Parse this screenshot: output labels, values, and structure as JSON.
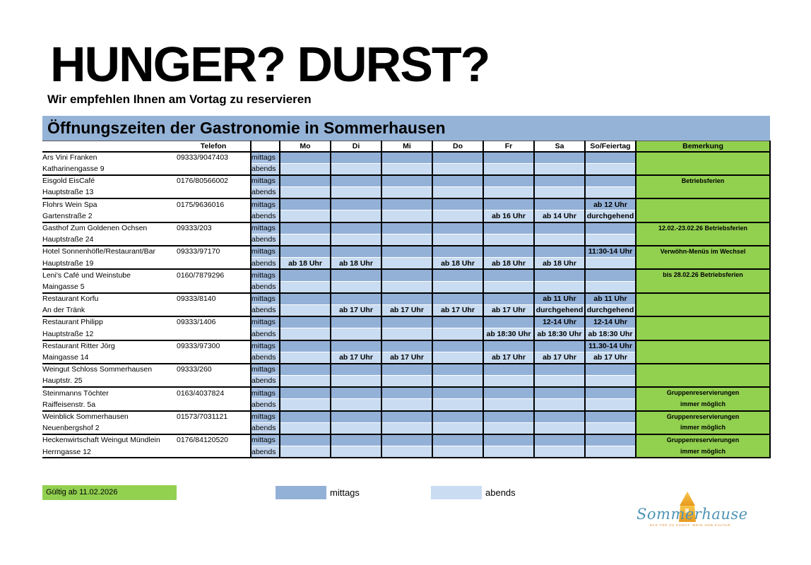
{
  "page": {
    "title": "HUNGER? DURST?",
    "subtitle": "Wir empfehlen Ihnen am Vortag zu reservieren"
  },
  "table": {
    "title": "Öffnungszeiten der Gastronomie in Sommerhausen",
    "headers": {
      "telefon": "Telefon",
      "days": [
        "Mo",
        "Di",
        "Mi",
        "Do",
        "Fr",
        "Sa",
        "So/Feiertag"
      ],
      "bemerkung": "Bemerkung"
    },
    "row_labels": [
      "mittags",
      "abends"
    ],
    "restaurants": [
      {
        "name": "Ars Vini Franken",
        "address": "Katharinengasse 9",
        "phone": "09333/9047403",
        "mittags": [
          "",
          "",
          "",
          "",
          "",
          "",
          ""
        ],
        "abends": [
          "",
          "",
          "",
          "",
          "",
          "",
          ""
        ],
        "bemerkung": [
          "",
          ""
        ]
      },
      {
        "name": "Eisgold EisCafé",
        "address": "Hauptstraße 13",
        "phone": "0176/80566002",
        "mittags": [
          "",
          "",
          "",
          "",
          "",
          "",
          ""
        ],
        "abends": [
          "",
          "",
          "",
          "",
          "",
          "",
          ""
        ],
        "bemerkung": [
          "Betriebsferien",
          ""
        ]
      },
      {
        "name": "Flohrs Wein Spa",
        "address": "Gartenstraße 2",
        "phone": "0175/9636016",
        "mittags": [
          "",
          "",
          "",
          "",
          "",
          "",
          "ab 12 Uhr"
        ],
        "abends": [
          "",
          "",
          "",
          "",
          "ab 16 Uhr",
          "ab 14 Uhr",
          "durchgehend"
        ],
        "bemerkung": [
          "",
          ""
        ]
      },
      {
        "name": "Gasthof Zum Goldenen Ochsen",
        "address": "Hauptstraße 24",
        "phone": "09333/203",
        "mittags": [
          "",
          "",
          "",
          "",
          "",
          "",
          ""
        ],
        "abends": [
          "",
          "",
          "",
          "",
          "",
          "",
          ""
        ],
        "bemerkung": [
          "12.02.-23.02.26 Betriebsferien",
          ""
        ]
      },
      {
        "name": "Hotel Sonnenhöfle/Restaurant/Bar",
        "address": "Hauptstraße 19",
        "phone": "09333/97170",
        "mittags": [
          "",
          "",
          "",
          "",
          "",
          "",
          "11:30-14 Uhr"
        ],
        "abends": [
          "ab 18 Uhr",
          "ab 18 Uhr",
          "",
          "ab 18 Uhr",
          "ab 18 Uhr",
          "ab 18 Uhr",
          ""
        ],
        "bemerkung": [
          "Verwöhn-Menüs im Wechsel",
          ""
        ]
      },
      {
        "name": "Leni's Café und Weinstube",
        "address": "Maingasse 5",
        "phone": "0160/7879296",
        "mittags": [
          "",
          "",
          "",
          "",
          "",
          "",
          ""
        ],
        "abends": [
          "",
          "",
          "",
          "",
          "",
          "",
          ""
        ],
        "bemerkung": [
          "bis 28.02.26 Betriebsferien",
          ""
        ]
      },
      {
        "name": "Restaurant Korfu",
        "address": "An der Tränk",
        "phone": "09333/8140",
        "mittags": [
          "",
          "",
          "",
          "",
          "",
          "ab 11 Uhr",
          "ab 11 Uhr"
        ],
        "abends": [
          "",
          "ab 17 Uhr",
          "ab 17 Uhr",
          "ab 17 Uhr",
          "ab 17 Uhr",
          "durchgehend",
          "durchgehend"
        ],
        "bemerkung": [
          "",
          ""
        ]
      },
      {
        "name": "Restaurant Philipp",
        "address": "Hauptstraße 12",
        "phone": "09333/1406",
        "mittags": [
          "",
          "",
          "",
          "",
          "",
          "12-14 Uhr",
          "12-14 Uhr"
        ],
        "abends": [
          "",
          "",
          "",
          "",
          "ab 18:30 Uhr",
          "ab 18:30 Uhr",
          "ab 18:30 Uhr"
        ],
        "bemerkung": [
          "",
          ""
        ]
      },
      {
        "name": "Restaurant Ritter Jörg",
        "address": "Maingasse 14",
        "phone": "09333/97300",
        "mittags": [
          "",
          "",
          "",
          "",
          "",
          "",
          "11.30-14 Uhr"
        ],
        "abends": [
          "",
          "ab 17 Uhr",
          "ab 17 Uhr",
          "",
          "ab 17 Uhr",
          "ab 17 Uhr",
          "ab 17 Uhr"
        ],
        "bemerkung": [
          "",
          ""
        ]
      },
      {
        "name": "Weingut Schloss Sommerhausen",
        "address": "Hauptstr. 25",
        "phone": "09333/260",
        "mittags": [
          "",
          "",
          "",
          "",
          "",
          "",
          ""
        ],
        "abends": [
          "",
          "",
          "",
          "",
          "",
          "",
          ""
        ],
        "bemerkung": [
          "",
          ""
        ]
      },
      {
        "name": "Steinmanns Töchter",
        "address": "Raiffeisenstr. 5a",
        "phone": "0163/4037824",
        "mittags": [
          "",
          "",
          "",
          "",
          "",
          "",
          ""
        ],
        "abends": [
          "",
          "",
          "",
          "",
          "",
          "",
          ""
        ],
        "bemerkung": [
          "Gruppenreservierungen",
          "immer möglich"
        ]
      },
      {
        "name": "Weinblick Sommerhausen",
        "address": "Neuenbergshof 2",
        "phone": "01573/7031121",
        "mittags": [
          "",
          "",
          "",
          "",
          "",
          "",
          ""
        ],
        "abends": [
          "",
          "",
          "",
          "",
          "",
          "",
          ""
        ],
        "bemerkung": [
          "Gruppenreservierungen",
          "immer möglich"
        ]
      },
      {
        "name": "Heckenwirtschaft Weingut Mündlein",
        "address": "Herrngasse 12",
        "phone": "0176/84120520",
        "mittags": [
          "",
          "",
          "",
          "",
          "",
          "",
          ""
        ],
        "abends": [
          "",
          "",
          "",
          "",
          "",
          "",
          ""
        ],
        "bemerkung": [
          "Gruppenreservierungen",
          "immer möglich"
        ]
      }
    ]
  },
  "footer": {
    "validity": "Gültig ab 11.02.2026",
    "legend": [
      {
        "label": "mittags",
        "color": "#93B1D7"
      },
      {
        "label": "abends",
        "color": "#C9DCF1"
      }
    ]
  },
  "logo": {
    "name": "Sommerhausen",
    "tagline": "DAS TOR ZU KUNST, WEIN UND KULTUR"
  },
  "colors": {
    "header_bar": "#95B3D7",
    "mittags_cell": "#93B1D7",
    "mittags_label": "#A3BDDF",
    "abends_cell": "#C9DCF1",
    "abends_label": "#C3D6ED",
    "green": "#92D050"
  }
}
